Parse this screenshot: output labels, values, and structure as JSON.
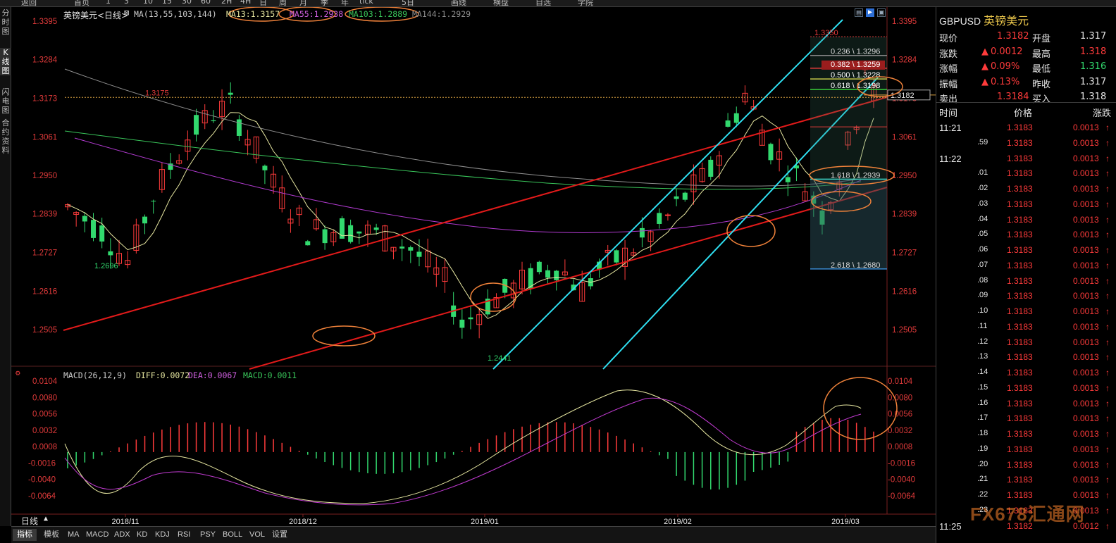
{
  "toolbar": {
    "items": [
      "返回",
      "首页",
      "1",
      "3",
      "10",
      "15",
      "30",
      "60",
      "2H",
      "4H",
      "日",
      "周",
      "月",
      "季",
      "年",
      "tick",
      "5日",
      "画线",
      "横盘",
      "自选",
      "学院"
    ]
  },
  "left_tabs": [
    {
      "label": "分时图",
      "active": false
    },
    {
      "label": "K线图",
      "active": true
    },
    {
      "label": "闪电图",
      "active": false
    },
    {
      "label": "合约资料",
      "active": false
    }
  ],
  "chart": {
    "title": "英镑美元<日线>",
    "ma_header": {
      "prefix": "MA(13,55,103,144)",
      "ma13": "MA13:1.3157",
      "ma55": "MA55:1.2938",
      "ma103": "MA103:1.2889",
      "ma144": "MA144:1.2929"
    },
    "macd_header": {
      "prefix": "MACD(26,12,9)",
      "diff": "DIFF:0.0072",
      "dea": "DEA:0.0067",
      "macd": "MACD:0.0011"
    },
    "price_ticks": [
      "1.3395",
      "1.3284",
      "1.3173",
      "1.3061",
      "1.2950",
      "1.2839",
      "1.2727",
      "1.2616",
      "1.2505"
    ],
    "macd_ticks": [
      "0.0104",
      "0.0080",
      "0.0056",
      "0.0032",
      "0.0008",
      "-0.0016",
      "-0.0040",
      "-0.0064"
    ],
    "date_labels": [
      "2018/11",
      "2018/12",
      "2019/01",
      "2019/02",
      "2019/03"
    ],
    "annotations": {
      "high": "1.3350",
      "prev_high": "1.3175",
      "low1": "1.2696",
      "low2": "1.2441",
      "current": "1.3182"
    },
    "fib_levels": [
      "0.236 \\ 1.3296",
      "0.382 \\ 1.3259",
      "0.500 \\ 1.3228",
      "0.618 \\ 1.3198",
      "1.618 \\ 1.2939",
      "2.618 \\ 1.2680"
    ],
    "period_label": "日线"
  },
  "bottom_tabs": [
    {
      "label": "指标",
      "active": true
    },
    {
      "label": "模板",
      "active": false
    },
    {
      "label": "MA",
      "active": false
    },
    {
      "label": "MACD",
      "active": false
    },
    {
      "label": "ADX",
      "active": false
    },
    {
      "label": "KD",
      "active": false
    },
    {
      "label": "KDJ",
      "active": false
    },
    {
      "label": "RSI",
      "active": false
    },
    {
      "label": "PSY",
      "active": false
    },
    {
      "label": "BOLL",
      "active": false
    },
    {
      "label": "VOL",
      "active": false
    },
    {
      "label": "设置",
      "active": false
    }
  ],
  "quote": {
    "symbol": "GBPUSD",
    "name_cn": "英镑美元",
    "rows": [
      {
        "l1": "现价",
        "v1": "1.3182",
        "l2": "开盘",
        "v2": "1.317"
      },
      {
        "l1": "涨跌",
        "v1": "0.0012",
        "l2": "最高",
        "v2": "1.318"
      },
      {
        "l1": "涨幅",
        "v1": "0.09%",
        "l2": "最低",
        "v2": "1.316"
      },
      {
        "l1": "振幅",
        "v1": "0.13%",
        "l2": "昨收",
        "v2": "1.317"
      },
      {
        "l1": "卖出",
        "v1": "1.3184",
        "l2": "买入",
        "v2": "1.318"
      }
    ],
    "tick_headers": {
      "time": "时间",
      "price": "价格",
      "change": "涨跌"
    },
    "ticks": [
      {
        "t": "11:21",
        "p": "1.3183",
        "c": "0.0013"
      },
      {
        "t": ".59",
        "p": "1.3183",
        "c": "0.0013"
      },
      {
        "t": "11:22",
        "p": "1.3183",
        "c": "0.0013"
      },
      {
        "t": ".01",
        "p": "1.3183",
        "c": "0.0013"
      },
      {
        "t": ".02",
        "p": "1.3183",
        "c": "0.0013"
      },
      {
        "t": ".03",
        "p": "1.3183",
        "c": "0.0013"
      },
      {
        "t": ".04",
        "p": "1.3183",
        "c": "0.0013"
      },
      {
        "t": ".05",
        "p": "1.3183",
        "c": "0.0013"
      },
      {
        "t": ".06",
        "p": "1.3183",
        "c": "0.0013"
      },
      {
        "t": ".07",
        "p": "1.3183",
        "c": "0.0013"
      },
      {
        "t": ".08",
        "p": "1.3183",
        "c": "0.0013"
      },
      {
        "t": ".09",
        "p": "1.3183",
        "c": "0.0013"
      },
      {
        "t": ".10",
        "p": "1.3183",
        "c": "0.0013"
      },
      {
        "t": ".11",
        "p": "1.3183",
        "c": "0.0013"
      },
      {
        "t": ".12",
        "p": "1.3183",
        "c": "0.0013"
      },
      {
        "t": ".13",
        "p": "1.3183",
        "c": "0.0013"
      },
      {
        "t": ".14",
        "p": "1.3183",
        "c": "0.0013"
      },
      {
        "t": ".15",
        "p": "1.3183",
        "c": "0.0013"
      },
      {
        "t": ".16",
        "p": "1.3183",
        "c": "0.0013"
      },
      {
        "t": ".17",
        "p": "1.3183",
        "c": "0.0013"
      },
      {
        "t": ".18",
        "p": "1.3183",
        "c": "0.0013"
      },
      {
        "t": ".19",
        "p": "1.3183",
        "c": "0.0013"
      },
      {
        "t": ".20",
        "p": "1.3183",
        "c": "0.0013"
      },
      {
        "t": ".21",
        "p": "1.3183",
        "c": "0.0013"
      },
      {
        "t": ".22",
        "p": "1.3183",
        "c": "0.0013"
      },
      {
        "t": ".23",
        "p": "1.3183",
        "c": "0.0013"
      },
      {
        "t": "11:25",
        "p": "1.3182",
        "c": "0.0012"
      }
    ],
    "watermark": "FX678汇通网"
  },
  "colors": {
    "up_candle": "#ff3b3b",
    "down_candle": "#32d96e",
    "channel_red": "#e21a1a",
    "channel_cyan": "#2fe0f2",
    "highlight_ring": "#f0823a"
  }
}
